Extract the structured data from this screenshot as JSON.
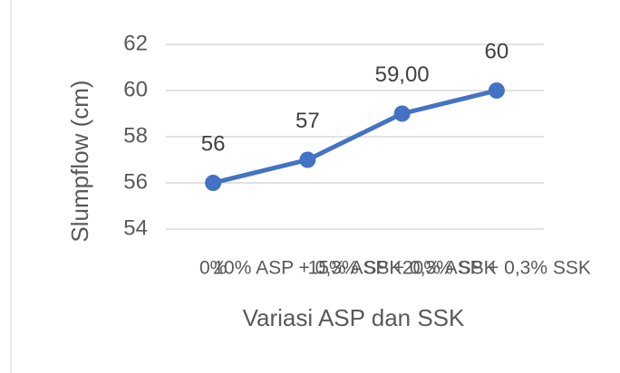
{
  "chart_data": {
    "type": "line",
    "y_label": "Slumpflow (cm)",
    "x_label": "Variasi ASP dan SSK",
    "categories": [
      "0%",
      "10% ASP + 0,3% SSK",
      "15% ASP + 0,3% SSK",
      "20% ASP + 0,3% SSK"
    ],
    "series": [
      {
        "name": "Slumpflow",
        "color": "#4472c4",
        "values": [
          56,
          57,
          59,
          60
        ],
        "value_labels": [
          "56",
          "57",
          "59,00",
          "60"
        ]
      }
    ],
    "ylim": [
      54,
      62
    ],
    "yticks": [
      54,
      56,
      58,
      60,
      62
    ],
    "grid": true
  }
}
